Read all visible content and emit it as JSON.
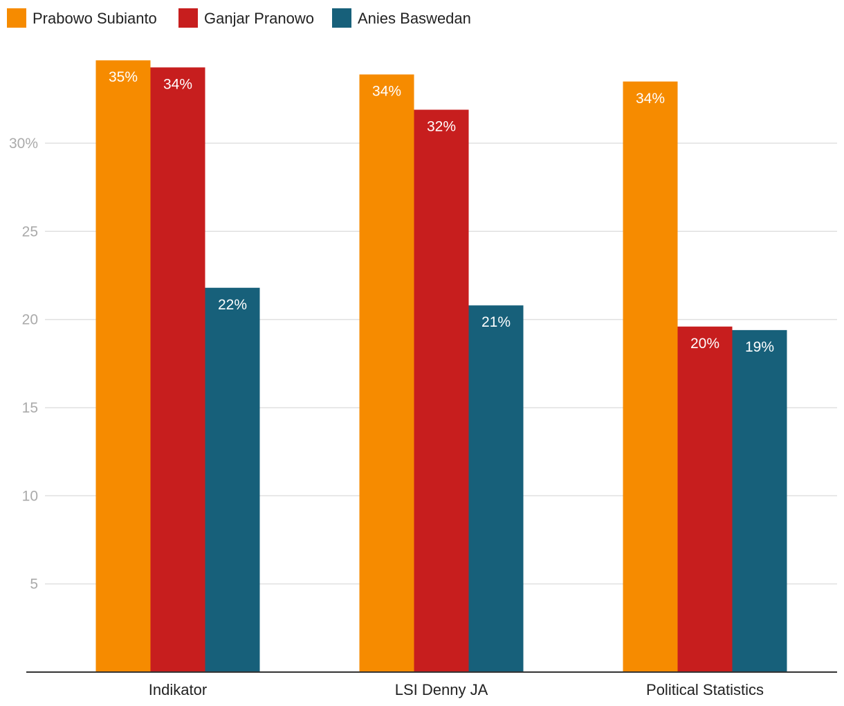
{
  "chart_data": {
    "type": "bar",
    "categories": [
      "Indikator",
      "LSI Denny JA",
      "Political Statistics"
    ],
    "series": [
      {
        "name": "Prabowo Subianto",
        "color": "#f68b00",
        "values": [
          34.7,
          33.9,
          33.5
        ],
        "labels": [
          "35%",
          "34%",
          "34%"
        ]
      },
      {
        "name": "Ganjar Pranowo",
        "color": "#c71e1e",
        "values": [
          34.3,
          31.9,
          19.6
        ],
        "labels": [
          "34%",
          "32%",
          "20%"
        ]
      },
      {
        "name": "Anies Baswedan",
        "color": "#17607a",
        "values": [
          21.8,
          20.8,
          19.4
        ],
        "labels": [
          "22%",
          "21%",
          "19%"
        ]
      }
    ],
    "yticks": [
      {
        "value": 5,
        "label": "5"
      },
      {
        "value": 10,
        "label": "10"
      },
      {
        "value": 15,
        "label": "15"
      },
      {
        "value": 20,
        "label": "20"
      },
      {
        "value": 25,
        "label": "25"
      },
      {
        "value": 30,
        "label": "30%"
      }
    ],
    "ylim": [
      0,
      35
    ],
    "grid": true,
    "legend_position": "top-left",
    "gridline_color": "#e0e0e0",
    "axis_color": "#333333"
  }
}
